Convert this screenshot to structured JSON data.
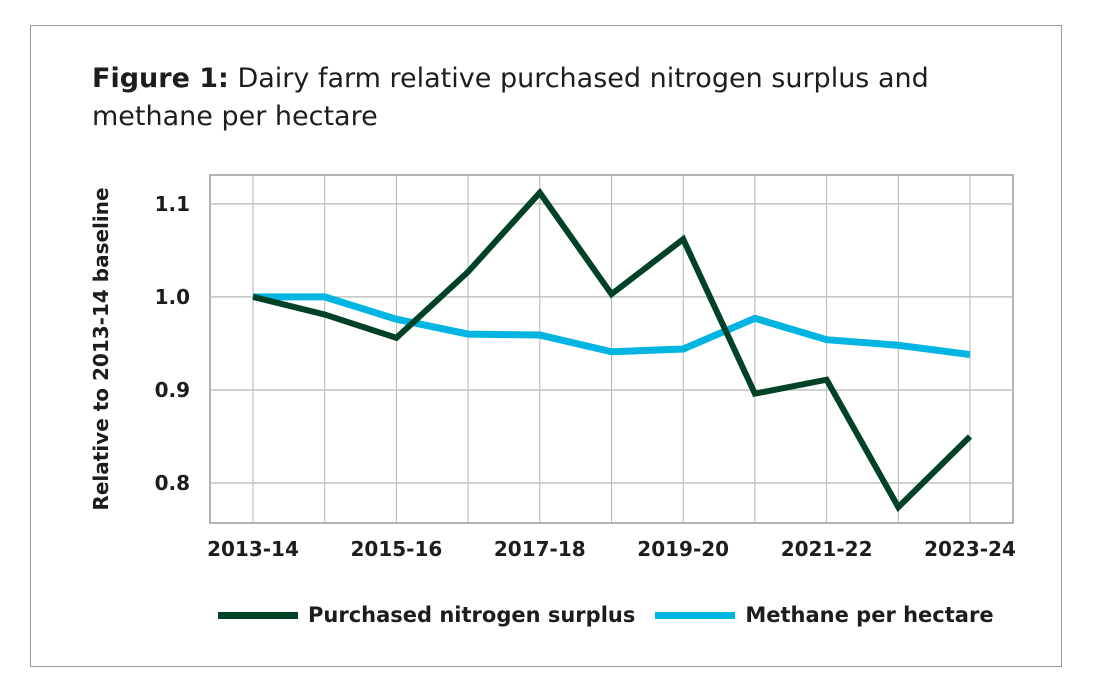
{
  "chart_data": {
    "type": "line",
    "title_prefix": "Figure 1:",
    "title": "Dairy farm relative purchased nitrogen surplus and methane per hectare",
    "xlabel": "",
    "ylabel": "Relative to 2013-14 baseline",
    "x": [
      "2013-14",
      "2014-15",
      "2015-16",
      "2016-17",
      "2017-18",
      "2018-19",
      "2019-20",
      "2020-21",
      "2021-22",
      "2022-23",
      "2023-24"
    ],
    "x_tick_labels": [
      "2013-14",
      "2015-16",
      "2017-18",
      "2019-20",
      "2021-22",
      "2023-24"
    ],
    "y_ticks": [
      "0.8",
      "0.9",
      "1.0",
      "1.1"
    ],
    "ylim": [
      0.757,
      1.131
    ],
    "grid": true,
    "legend_position": "bottom",
    "series": [
      {
        "name": "Purchased nitrogen surplus",
        "color": "#004225",
        "values": [
          1.0,
          0.981,
          0.956,
          1.027,
          1.112,
          1.003,
          1.062,
          0.896,
          0.911,
          0.774,
          0.85
        ]
      },
      {
        "name": "Methane per hectare",
        "color": "#00b5e2",
        "values": [
          1.0,
          1.0,
          0.976,
          0.96,
          0.959,
          0.941,
          0.944,
          0.977,
          0.954,
          0.948,
          0.938
        ]
      }
    ]
  }
}
